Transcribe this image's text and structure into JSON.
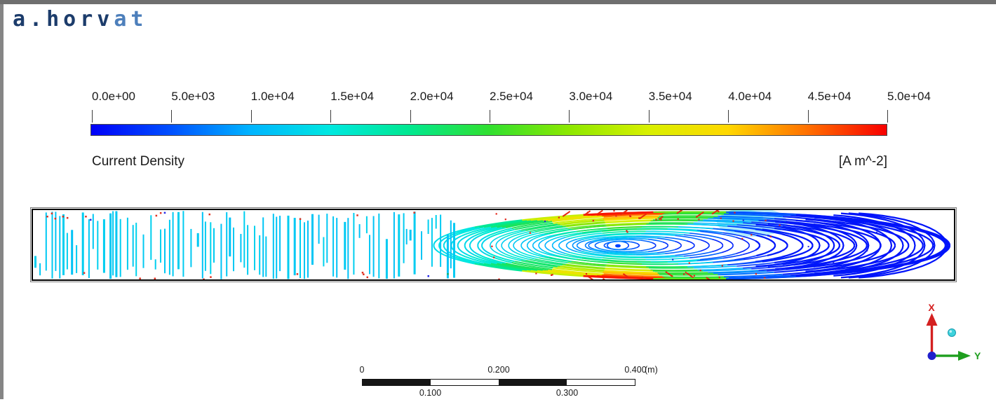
{
  "frame": {
    "top_bar_color": "#6f6f6f",
    "left_bar_color": "#858585"
  },
  "watermark": {
    "part1": "a.horv",
    "part2": "at",
    "color_primary": "#1c3c6b",
    "color_secondary": "#4d7fbb"
  },
  "legend": {
    "title": "Current Density",
    "units": "[A m^-2]",
    "tick_labels": [
      "0.0e+00",
      "5.0e+03",
      "1.0e+04",
      "1.5e+04",
      "2.0e+04",
      "2.5e+04",
      "3.0e+04",
      "3.5e+04",
      "4.0e+04",
      "4.5e+04",
      "5.0e+04"
    ],
    "colormap_stops": [
      [
        0,
        "#0000f8"
      ],
      [
        0.1,
        "#0050ff"
      ],
      [
        0.2,
        "#00b4ff"
      ],
      [
        0.3,
        "#00e8e0"
      ],
      [
        0.4,
        "#00e890"
      ],
      [
        0.5,
        "#30e030"
      ],
      [
        0.6,
        "#8ce800"
      ],
      [
        0.7,
        "#d8f000"
      ],
      [
        0.8,
        "#ffd800"
      ],
      [
        0.9,
        "#ff7000"
      ],
      [
        1,
        "#f80000"
      ]
    ]
  },
  "ruler": {
    "unit": "(m)",
    "top_ticks": [
      {
        "label": "0",
        "frac": 0
      },
      {
        "label": "0.200",
        "frac": 0.5
      },
      {
        "label": "0.400",
        "frac": 1
      }
    ],
    "bottom_ticks": [
      {
        "label": "0.100",
        "frac": 0.25
      },
      {
        "label": "0.300",
        "frac": 0.75
      }
    ],
    "segment_colors": [
      "#161616",
      "#ffffff",
      "#161616",
      "#ffffff"
    ]
  },
  "triad": {
    "x_label": "X",
    "y_label": "Y",
    "x_color": "#d42020",
    "y_color": "#1e9e1e",
    "origin_color": "#2020cc",
    "sphere_color": "#3ed2dc"
  },
  "chart_data": {
    "type": "streamline-contour",
    "title": "Current Density",
    "units": "[A m^-2]",
    "colorbar": {
      "min": 0,
      "max": 50000,
      "ticks": [
        0,
        5000,
        10000,
        15000,
        20000,
        25000,
        30000,
        35000,
        40000,
        45000,
        50000
      ],
      "tick_labels": [
        "0.0e+00",
        "5.0e+03",
        "1.0e+04",
        "1.5e+04",
        "2.0e+04",
        "2.5e+04",
        "3.0e+04",
        "3.5e+04",
        "4.0e+04",
        "4.5e+04",
        "5.0e+04"
      ],
      "orientation": "horizontal"
    },
    "scale_bar": {
      "unit": "m",
      "min": 0,
      "max": 0.4,
      "interval": 0.1
    },
    "notes": "Current-density streamlines in a long thin rectangular domain. Left half: near-vertical cyan field lines (~1.1e4 A m^-2). Right half: nested recirculation loops with a vortex core near 60% of the domain length; loop colour varies along each path - cyan/green on the left limbs, red/orange (~5e4 A m^-2) where loops graze the top and bottom walls, deep blue (<5e3 A m^-2) in the right-hand lobe. Scattered red speckles throughout the loop region."
  }
}
